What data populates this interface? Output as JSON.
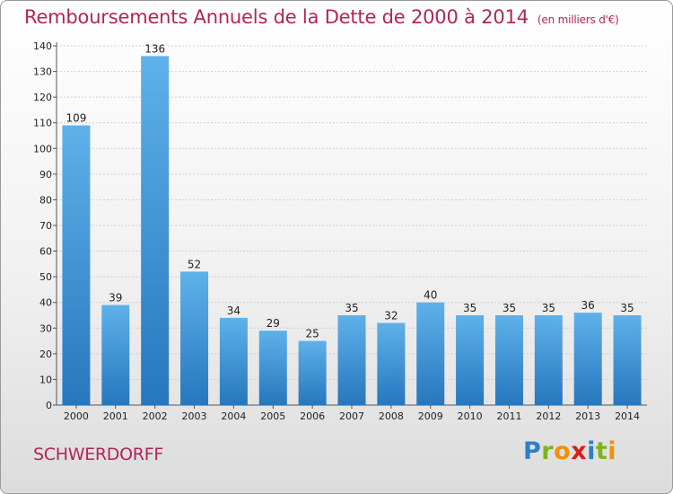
{
  "title": "Remboursements Annuels de la Dette de 2000 à 2014",
  "unit_note": "(en milliers d'€)",
  "commune": "SCHWERDORFF",
  "logo": {
    "letters": [
      "P",
      "r",
      "o",
      "x",
      "i",
      "t",
      "i"
    ],
    "colors": [
      "#2e7fc6",
      "#7ab51d",
      "#f29100",
      "#d7211d",
      "#2e7fc6",
      "#7ab51d",
      "#f29100"
    ]
  },
  "colors": {
    "title": "#b3245a",
    "bar_top": "#5fb1ea",
    "bar_bottom": "#2677bd",
    "grid": "#cfcfcf",
    "axis": "#555555",
    "text": "#222222"
  },
  "chart_data": {
    "type": "bar",
    "title": "Remboursements Annuels de la Dette de 2000 à 2014",
    "subtitle": "(en milliers d'€)",
    "xlabel": "",
    "ylabel": "",
    "categories": [
      "2000",
      "2001",
      "2002",
      "2003",
      "2004",
      "2005",
      "2006",
      "2007",
      "2008",
      "2009",
      "2010",
      "2011",
      "2012",
      "2013",
      "2014"
    ],
    "values": [
      109,
      39,
      136,
      52,
      34,
      29,
      25,
      35,
      32,
      40,
      35,
      35,
      35,
      36,
      35
    ],
    "ylim": [
      0,
      140
    ],
    "yticks": [
      0,
      10,
      20,
      30,
      40,
      50,
      60,
      70,
      80,
      90,
      100,
      110,
      120,
      130,
      140
    ],
    "grid": true,
    "data_labels": true
  }
}
